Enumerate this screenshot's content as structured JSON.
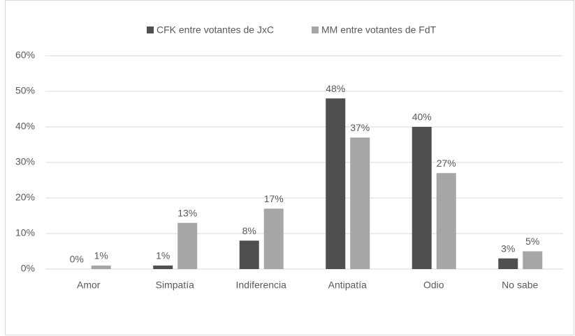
{
  "chart_data": {
    "type": "bar",
    "categories": [
      "Amor",
      "Simpatía",
      "Indiferencia",
      "Antipatía",
      "Odio",
      "No sabe"
    ],
    "series": [
      {
        "name": "CFK entre votantes de JxC",
        "color": "#4f4f4f",
        "values": [
          0,
          1,
          8,
          48,
          40,
          3
        ],
        "value_labels": [
          "0%",
          "1%",
          "8%",
          "48%",
          "40%",
          "3%"
        ]
      },
      {
        "name": "MM entre votantes de FdT",
        "color": "#a6a6a6",
        "values": [
          1,
          13,
          17,
          37,
          27,
          5
        ],
        "value_labels": [
          "1%",
          "13%",
          "17%",
          "37%",
          "27%",
          "5%"
        ]
      }
    ],
    "ylim": [
      0,
      60
    ],
    "yticks": [
      {
        "value": 0,
        "label": "0%"
      },
      {
        "value": 10,
        "label": "10%"
      },
      {
        "value": 20,
        "label": "20%"
      },
      {
        "value": 30,
        "label": "30%"
      },
      {
        "value": 40,
        "label": "40%"
      },
      {
        "value": 50,
        "label": "50%"
      },
      {
        "value": 60,
        "label": "60%"
      }
    ],
    "grid": true,
    "legend": "top"
  }
}
